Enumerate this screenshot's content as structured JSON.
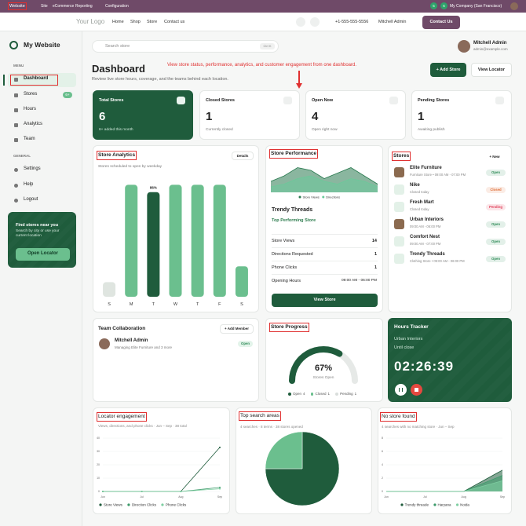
{
  "topbar": {
    "app": "Website",
    "menu": [
      "Site",
      "eCommerce",
      "Reporting",
      "Configuration"
    ],
    "badges": [
      "5",
      "6"
    ],
    "company": "My Company (San Francisco)"
  },
  "navbar": {
    "logo": "Your Logo",
    "links": [
      "Home",
      "Shop",
      "Store",
      "Contact us"
    ],
    "phone": "+1-555-555-5556",
    "user": "Mitchell Admin",
    "cta": "Contact Us"
  },
  "sidebar": {
    "brand": "My Website",
    "menu_label": "MENU",
    "menu": [
      {
        "label": "Dashboard"
      },
      {
        "label": "Stores",
        "badge": "6+"
      },
      {
        "label": "Hours"
      },
      {
        "label": "Analytics"
      },
      {
        "label": "Team"
      }
    ],
    "general_label": "GENERAL",
    "general": [
      "Settings",
      "Help",
      "Logout"
    ],
    "promo": {
      "title": "Find stores near you",
      "text": "Search by city or use your current location",
      "button": "Open Locator"
    }
  },
  "header": {
    "search": "Search store",
    "shortcut": "Ctrl K",
    "user": "Mitchell Admin",
    "email": "admin@example.com",
    "title": "Dashboard",
    "subtitle": "Review live store hours, coverage, and the teams behind each location.",
    "annotation": "View store status, performance, analytics, and customer engagement from one dashboard.",
    "buttons": [
      "+ Add Store",
      "View Locator"
    ]
  },
  "stats": [
    {
      "label": "Total Stores",
      "value": 6,
      "note": "6+ added this month"
    },
    {
      "label": "Closed Stores",
      "value": 1,
      "note": "Currently closed"
    },
    {
      "label": "Open Now",
      "value": 4,
      "note": "Open right now"
    },
    {
      "label": "Pending Stores",
      "value": 1,
      "note": "Awaiting publish"
    }
  ],
  "store_analytics": {
    "type": "bar",
    "title": "Store Analytics",
    "button": "Details",
    "subtitle": "Stores scheduled to open by weekday",
    "categories": [
      "S",
      "M",
      "T",
      "W",
      "T",
      "F",
      "S"
    ],
    "values": [
      12,
      92,
      86,
      92,
      92,
      92,
      25
    ],
    "value_labels": [
      null,
      null,
      "86%",
      null,
      null,
      null,
      null
    ],
    "colors": [
      "#dfe5e0",
      "#6bbf8e",
      "#1f5c3c",
      "#6bbf8e",
      "#6bbf8e",
      "#6bbf8e",
      "#6bbf8e"
    ],
    "ylim": [
      0,
      100
    ]
  },
  "store_performance": {
    "type": "area",
    "title": "Store Performance",
    "ylim": [
      0,
      10
    ],
    "series": [
      {
        "name": "Store Views",
        "color": "#2a7a50",
        "values": [
          4,
          6,
          9,
          8,
          5,
          7,
          9,
          6,
          3
        ]
      },
      {
        "name": "Directions",
        "color": "#6bc99a",
        "values": [
          2,
          3,
          5,
          6,
          4,
          3,
          5,
          4,
          2
        ]
      }
    ],
    "store": "Trendy Threads",
    "store_subtitle": "Top Performing Store",
    "rows": [
      {
        "label": "Store Views",
        "value": 14
      },
      {
        "label": "Directions Requested",
        "value": 1
      },
      {
        "label": "Phone Clicks",
        "value": 1
      },
      {
        "label": "Opening Hours",
        "value": "09:00 AM - 06:00 PM"
      }
    ],
    "button": "View Store"
  },
  "stores": {
    "title": "Stores",
    "button": "+ New",
    "items": [
      {
        "name": "Elite Furniture",
        "info": "Furniture Store • 09:00 AM - 07:00 PM",
        "status": "Open",
        "status_color": "#2e8b57"
      },
      {
        "name": "Nike",
        "info": "Closed today",
        "status": "Closed",
        "status_color": "#e0703a"
      },
      {
        "name": "Fresh Mart",
        "info": "Closed today",
        "status": "Pending",
        "status_color": "#e0405a"
      },
      {
        "name": "Urban Interiors",
        "info": "09:00 AM - 06:00 PM",
        "status": "Open",
        "status_color": "#2e8b57"
      },
      {
        "name": "Comfort Nest",
        "info": "09:00 AM - 07:00 PM",
        "status": "Open",
        "status_color": "#2e8b57"
      },
      {
        "name": "Trendy Threads",
        "info": "Clothing Store • 09:00 AM - 06:00 PM",
        "status": "Open",
        "status_color": "#2e8b57"
      }
    ]
  },
  "team": {
    "title": "Team Collaboration",
    "button": "+ Add Member",
    "member": "Mitchell Admin",
    "role": "Managing Elite Furniture and 3 more",
    "status": "Open"
  },
  "store_progress": {
    "type": "gauge",
    "title": "Store Progress",
    "value": 67,
    "value_label": "67%",
    "lim": [
      0,
      100
    ],
    "caption": "Stores Open",
    "color": "#1f5c3c",
    "legend": [
      {
        "name": "Open",
        "value": 4,
        "color": "#1f5c3c"
      },
      {
        "name": "Closed",
        "value": 1,
        "color": "#6bbf8e"
      },
      {
        "name": "Pending",
        "value": 1,
        "color": "#d9dedb"
      }
    ]
  },
  "hours": {
    "title": "Hours Tracker",
    "store": "Urban Interiors",
    "caption": "Until close",
    "time": "02:26:39"
  },
  "locator": {
    "type": "line",
    "title": "Locator engagement",
    "subtitle": "Views, directions, and phone clicks · Jun – Sep · 38 total",
    "x": [
      "Jun",
      "Jul",
      "Aug",
      "Sep"
    ],
    "ylim": [
      0,
      40
    ],
    "yticks": [
      0,
      10,
      20,
      30,
      40
    ],
    "grid": true,
    "series": [
      {
        "name": "Store Views",
        "color": "#1f5c3c",
        "values": [
          0,
          0,
          0,
          33
        ]
      },
      {
        "name": "Direction Clicks",
        "color": "#3c9a6a",
        "values": [
          0,
          0,
          0,
          3
        ]
      },
      {
        "name": "Phone Clicks",
        "color": "#7fcfa2",
        "values": [
          0,
          0,
          0,
          2
        ]
      }
    ]
  },
  "search_areas": {
    "type": "pie",
    "title": "Top search areas",
    "subtitle": "4 searches · 8 terms · 38 stores opened",
    "values": [
      75,
      25
    ],
    "colors": [
      "#1f5c3c",
      "#6bbf8e"
    ]
  },
  "no_store": {
    "type": "area",
    "title": "No store found",
    "subtitle": "4 searches with no matching store · Jun – Sep",
    "x": [
      "Jun",
      "Jul",
      "Aug",
      "Sep"
    ],
    "ylim": [
      0,
      8
    ],
    "yticks": [
      0,
      2,
      4,
      6,
      8
    ],
    "grid": true,
    "series": [
      {
        "name": "Trendy threade",
        "color": "#1f5c3c",
        "values": [
          0,
          0,
          0,
          3.2
        ]
      },
      {
        "name": "Haryana",
        "color": "#3c9a6a",
        "values": [
          0,
          0,
          0,
          2.4
        ]
      },
      {
        "name": "Noida",
        "color": "#7fcfa2",
        "values": [
          0,
          0,
          0,
          1.6
        ]
      }
    ]
  }
}
